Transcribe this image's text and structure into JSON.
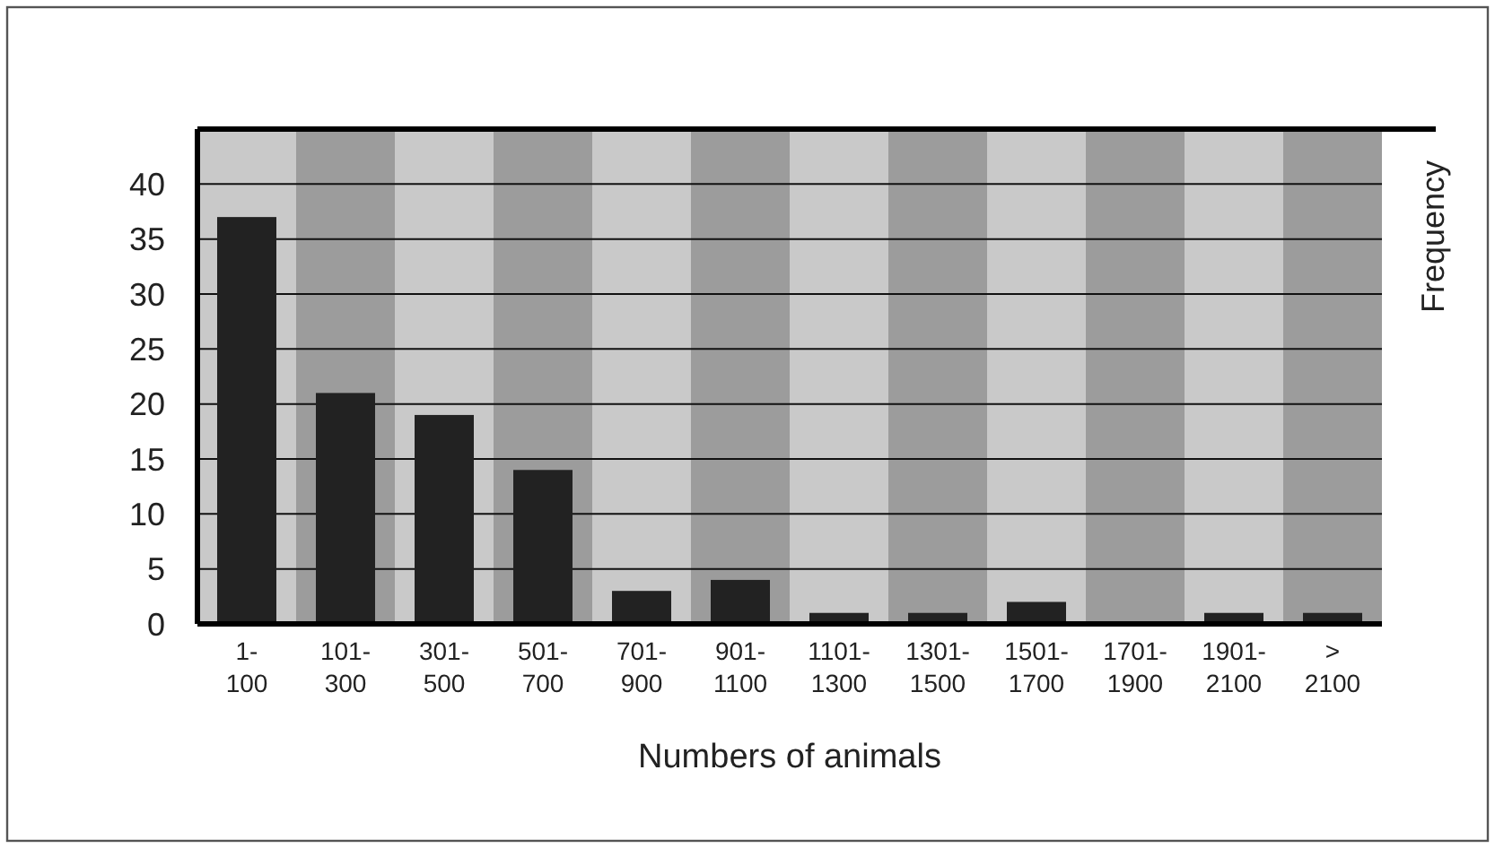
{
  "chart_data": {
    "type": "bar",
    "xlabel": "Numbers of animals",
    "ylabel": "Frequency",
    "categories": [
      "1-100",
      "101-300",
      "301-500",
      "501-700",
      "701-900",
      "901-1100",
      "1101-1300",
      "1301-1500",
      "1501-1700",
      "1701-1900",
      "1901-2100",
      "> 2100"
    ],
    "values": [
      37,
      21,
      19,
      14,
      3,
      4,
      1,
      1,
      2,
      0,
      1,
      1
    ],
    "color": "#222222",
    "ylim": [
      0,
      45
    ],
    "yticks": [
      0,
      5,
      10,
      15,
      20,
      25,
      30,
      35,
      40
    ],
    "grid": "y"
  }
}
